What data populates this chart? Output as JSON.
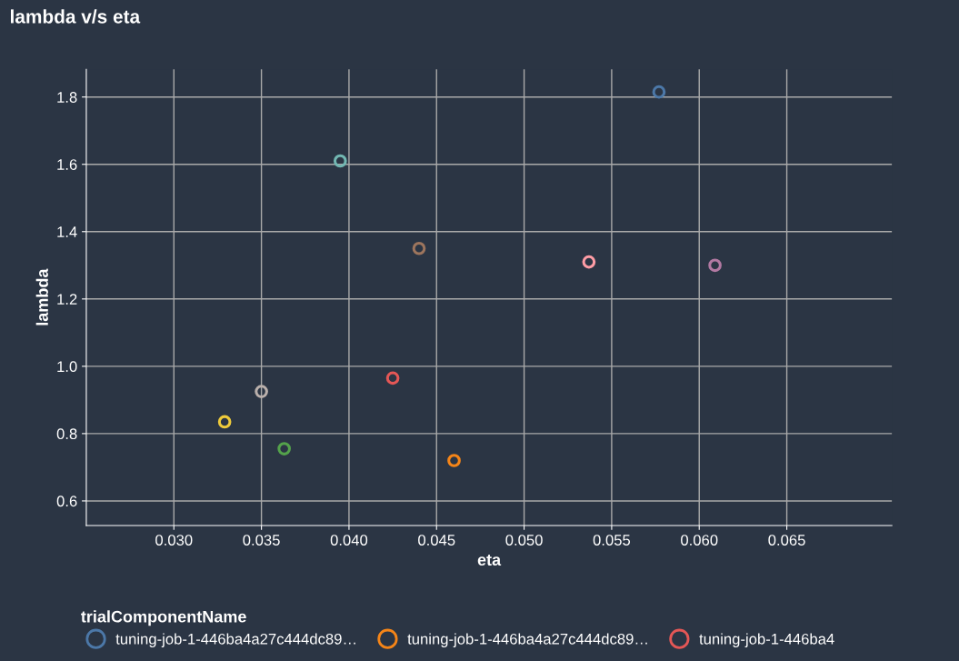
{
  "chart_data": {
    "type": "scatter",
    "title": "lambda v/s eta",
    "xlabel": "eta",
    "ylabel": "lambda",
    "legend_title": "trialComponentName",
    "xlim": [
      0.025,
      0.071
    ],
    "xticks": [
      {
        "value": 0.03,
        "label": "0.030"
      },
      {
        "value": 0.035,
        "label": "0.035"
      },
      {
        "value": 0.04,
        "label": "0.040"
      },
      {
        "value": 0.045,
        "label": "0.045"
      },
      {
        "value": 0.05,
        "label": "0.050"
      },
      {
        "value": 0.055,
        "label": "0.055"
      },
      {
        "value": 0.06,
        "label": "0.060"
      },
      {
        "value": 0.065,
        "label": "0.065"
      }
    ],
    "ylim": [
      0.527,
      1.882
    ],
    "yticks": [
      {
        "value": 0.6,
        "label": "0.6"
      },
      {
        "value": 0.8,
        "label": "0.8"
      },
      {
        "value": 1.0,
        "label": "1.0"
      },
      {
        "value": 1.2,
        "label": "1.2"
      },
      {
        "value": 1.4,
        "label": "1.4"
      },
      {
        "value": 1.6,
        "label": "1.6"
      },
      {
        "value": 1.8,
        "label": "1.8"
      }
    ],
    "grid": true,
    "legend": "bottom",
    "marker": "circle",
    "series": [
      {
        "name": "tuning-job-1-446ba4a27c444dc89…",
        "color": "#4c78a8",
        "x": [
          0.0577
        ],
        "values": [
          1.815
        ]
      },
      {
        "name": "tuning-job-1-446ba4a27c444dc89…",
        "color": "#f58518",
        "x": [
          0.046
        ],
        "values": [
          0.72
        ]
      },
      {
        "name": "tuning-job-1-446ba4",
        "color": "#e45756",
        "x": [
          0.0425
        ],
        "values": [
          0.965
        ]
      },
      {
        "color": "#72b7b2",
        "x": [
          0.0395
        ],
        "values": [
          1.61
        ]
      },
      {
        "color": "#54a24b",
        "x": [
          0.0363
        ],
        "values": [
          0.755
        ]
      },
      {
        "color": "#eeca3b",
        "x": [
          0.0329
        ],
        "values": [
          0.835
        ]
      },
      {
        "color": "#b279a2",
        "x": [
          0.0609
        ],
        "values": [
          1.3
        ]
      },
      {
        "color": "#ff9da6",
        "x": [
          0.0537
        ],
        "values": [
          1.31
        ]
      },
      {
        "color": "#9d755d",
        "x": [
          0.044
        ],
        "values": [
          1.35
        ]
      },
      {
        "color": "#bab0ac",
        "x": [
          0.035
        ],
        "values": [
          0.925
        ]
      }
    ]
  }
}
